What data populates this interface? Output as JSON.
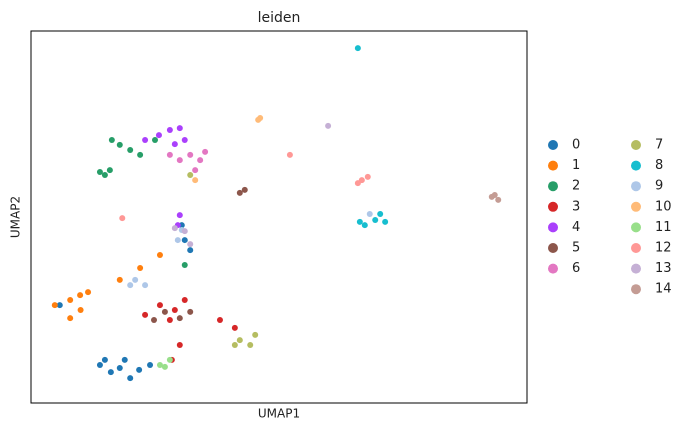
{
  "chart_data": {
    "type": "scatter",
    "title": "leiden",
    "x_label": "UMAP1",
    "y_label": "UMAP2",
    "xlim": [
      0,
      100
    ],
    "ylim": [
      0,
      100
    ],
    "legend_position": "right",
    "series": [
      {
        "name": "0",
        "color": "#1f77b4",
        "x": [
          17.9,
          13.9,
          16.1,
          18.9,
          21.8,
          24.0,
          20.0,
          31.0,
          30.4,
          32.1,
          14.9,
          5.8
        ],
        "y": [
          9.4,
          10.2,
          8.3,
          11.6,
          8.9,
          10.2,
          6.7,
          43.8,
          47.8,
          41.1,
          11.6,
          26.3
        ]
      },
      {
        "name": "1",
        "color": "#ff7f0e",
        "x": [
          7.9,
          9.9,
          4.8,
          10.0,
          7.9,
          11.5,
          17.9,
          22.0,
          26.0
        ],
        "y": [
          27.7,
          29.0,
          26.3,
          25.0,
          22.8,
          29.8,
          33.1,
          36.3,
          39.8
        ]
      },
      {
        "name": "2",
        "color": "#279e68",
        "x": [
          14.9,
          13.9,
          15.9,
          17.9,
          20.0,
          16.3,
          22.0,
          25.0,
          31.0
        ],
        "y": [
          61.3,
          62.1,
          62.6,
          69.4,
          68.0,
          70.7,
          66.7,
          70.7,
          37.1
        ]
      },
      {
        "name": "3",
        "color": "#d62728",
        "x": [
          26.0,
          29.0,
          23.0,
          31.0,
          28.0,
          30.0,
          38.1,
          41.1,
          28.4
        ],
        "y": [
          26.3,
          25.0,
          23.7,
          27.7,
          22.3,
          15.6,
          22.3,
          20.2,
          11.6
        ]
      },
      {
        "name": "4",
        "color": "#aa40fc",
        "x": [
          28.0,
          25.8,
          30.0,
          31.0,
          29.0,
          30.0,
          29.6,
          23.0
        ],
        "y": [
          73.4,
          72.0,
          73.9,
          70.7,
          69.6,
          50.5,
          47.8,
          70.7
        ]
      },
      {
        "name": "5",
        "color": "#8c564b",
        "x": [
          27.0,
          30.0,
          24.8,
          32.1,
          42.1,
          43.1
        ],
        "y": [
          24.5,
          22.8,
          22.3,
          24.5,
          56.5,
          57.3
        ]
      },
      {
        "name": "6",
        "color": "#e377c2",
        "x": [
          32.1,
          34.1,
          35.1,
          30.0,
          33.1,
          28.0
        ],
        "y": [
          66.7,
          65.3,
          67.5,
          65.3,
          62.6,
          66.7
        ]
      },
      {
        "name": "7",
        "color": "#b5bd61",
        "x": [
          42.1,
          44.2,
          41.1,
          45.2,
          32.1
        ],
        "y": [
          16.9,
          15.6,
          15.6,
          18.3,
          61.3
        ]
      },
      {
        "name": "8",
        "color": "#17becf",
        "x": [
          67.3,
          69.4,
          71.4,
          66.3,
          70.4,
          65.9
        ],
        "y": [
          47.8,
          49.2,
          48.7,
          48.7,
          50.8,
          95.4
        ]
      },
      {
        "name": "9",
        "color": "#aec7e8",
        "x": [
          21.0,
          23.0,
          20.0,
          30.4,
          29.6,
          68.3
        ],
        "y": [
          33.1,
          31.7,
          31.7,
          46.5,
          43.8,
          50.8
        ]
      },
      {
        "name": "10",
        "color": "#ffbb78",
        "x": [
          46.2,
          45.8,
          33.1
        ],
        "y": [
          76.6,
          76.1,
          59.9
        ]
      },
      {
        "name": "11",
        "color": "#98df8a",
        "x": [
          27.0,
          26.0,
          28.0
        ],
        "y": [
          9.7,
          10.2,
          11.6
        ]
      },
      {
        "name": "12",
        "color": "#ff9896",
        "x": [
          66.7,
          67.9,
          65.9,
          52.2,
          18.4
        ],
        "y": [
          59.9,
          60.8,
          59.1,
          66.7,
          49.7
        ]
      },
      {
        "name": "13",
        "color": "#c5b0d5",
        "x": [
          31.0,
          32.1,
          29.0,
          59.9
        ],
        "y": [
          46.2,
          42.7,
          47.0,
          74.5
        ]
      },
      {
        "name": "14",
        "color": "#c49c94",
        "x": [
          93.5,
          94.2,
          92.9
        ],
        "y": [
          55.9,
          54.6,
          55.4
        ]
      }
    ]
  }
}
